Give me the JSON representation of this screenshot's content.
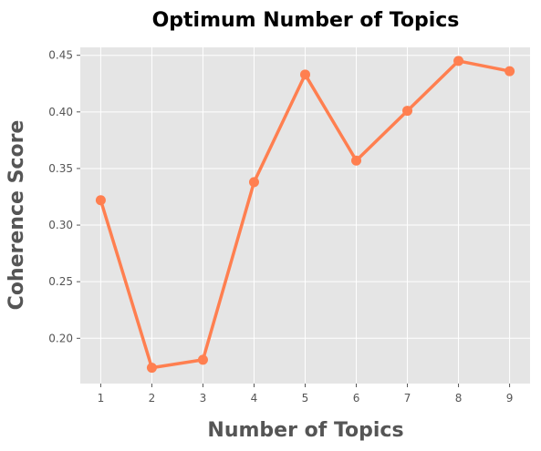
{
  "chart_data": {
    "type": "line",
    "title": "Optimum Number of Topics",
    "xlabel": "Number of Topics",
    "ylabel": "Coherence Score",
    "x": [
      1,
      2,
      3,
      4,
      5,
      6,
      7,
      8,
      9
    ],
    "series": [
      {
        "values": [
          0.322,
          0.174,
          0.181,
          0.338,
          0.433,
          0.357,
          0.401,
          0.445,
          0.436
        ]
      }
    ],
    "x_ticks": [
      1,
      2,
      3,
      4,
      5,
      6,
      7,
      8,
      9
    ],
    "y_ticks": [
      "0.20",
      "0.25",
      "0.30",
      "0.35",
      "0.40",
      "0.45"
    ],
    "xlim": [
      0.6,
      9.4
    ],
    "ylim": [
      0.16,
      0.457
    ],
    "grid": true,
    "colors": {
      "line": "#ff7f50",
      "plot_background": "#e5e5e5",
      "grid": "#ffffff"
    }
  }
}
